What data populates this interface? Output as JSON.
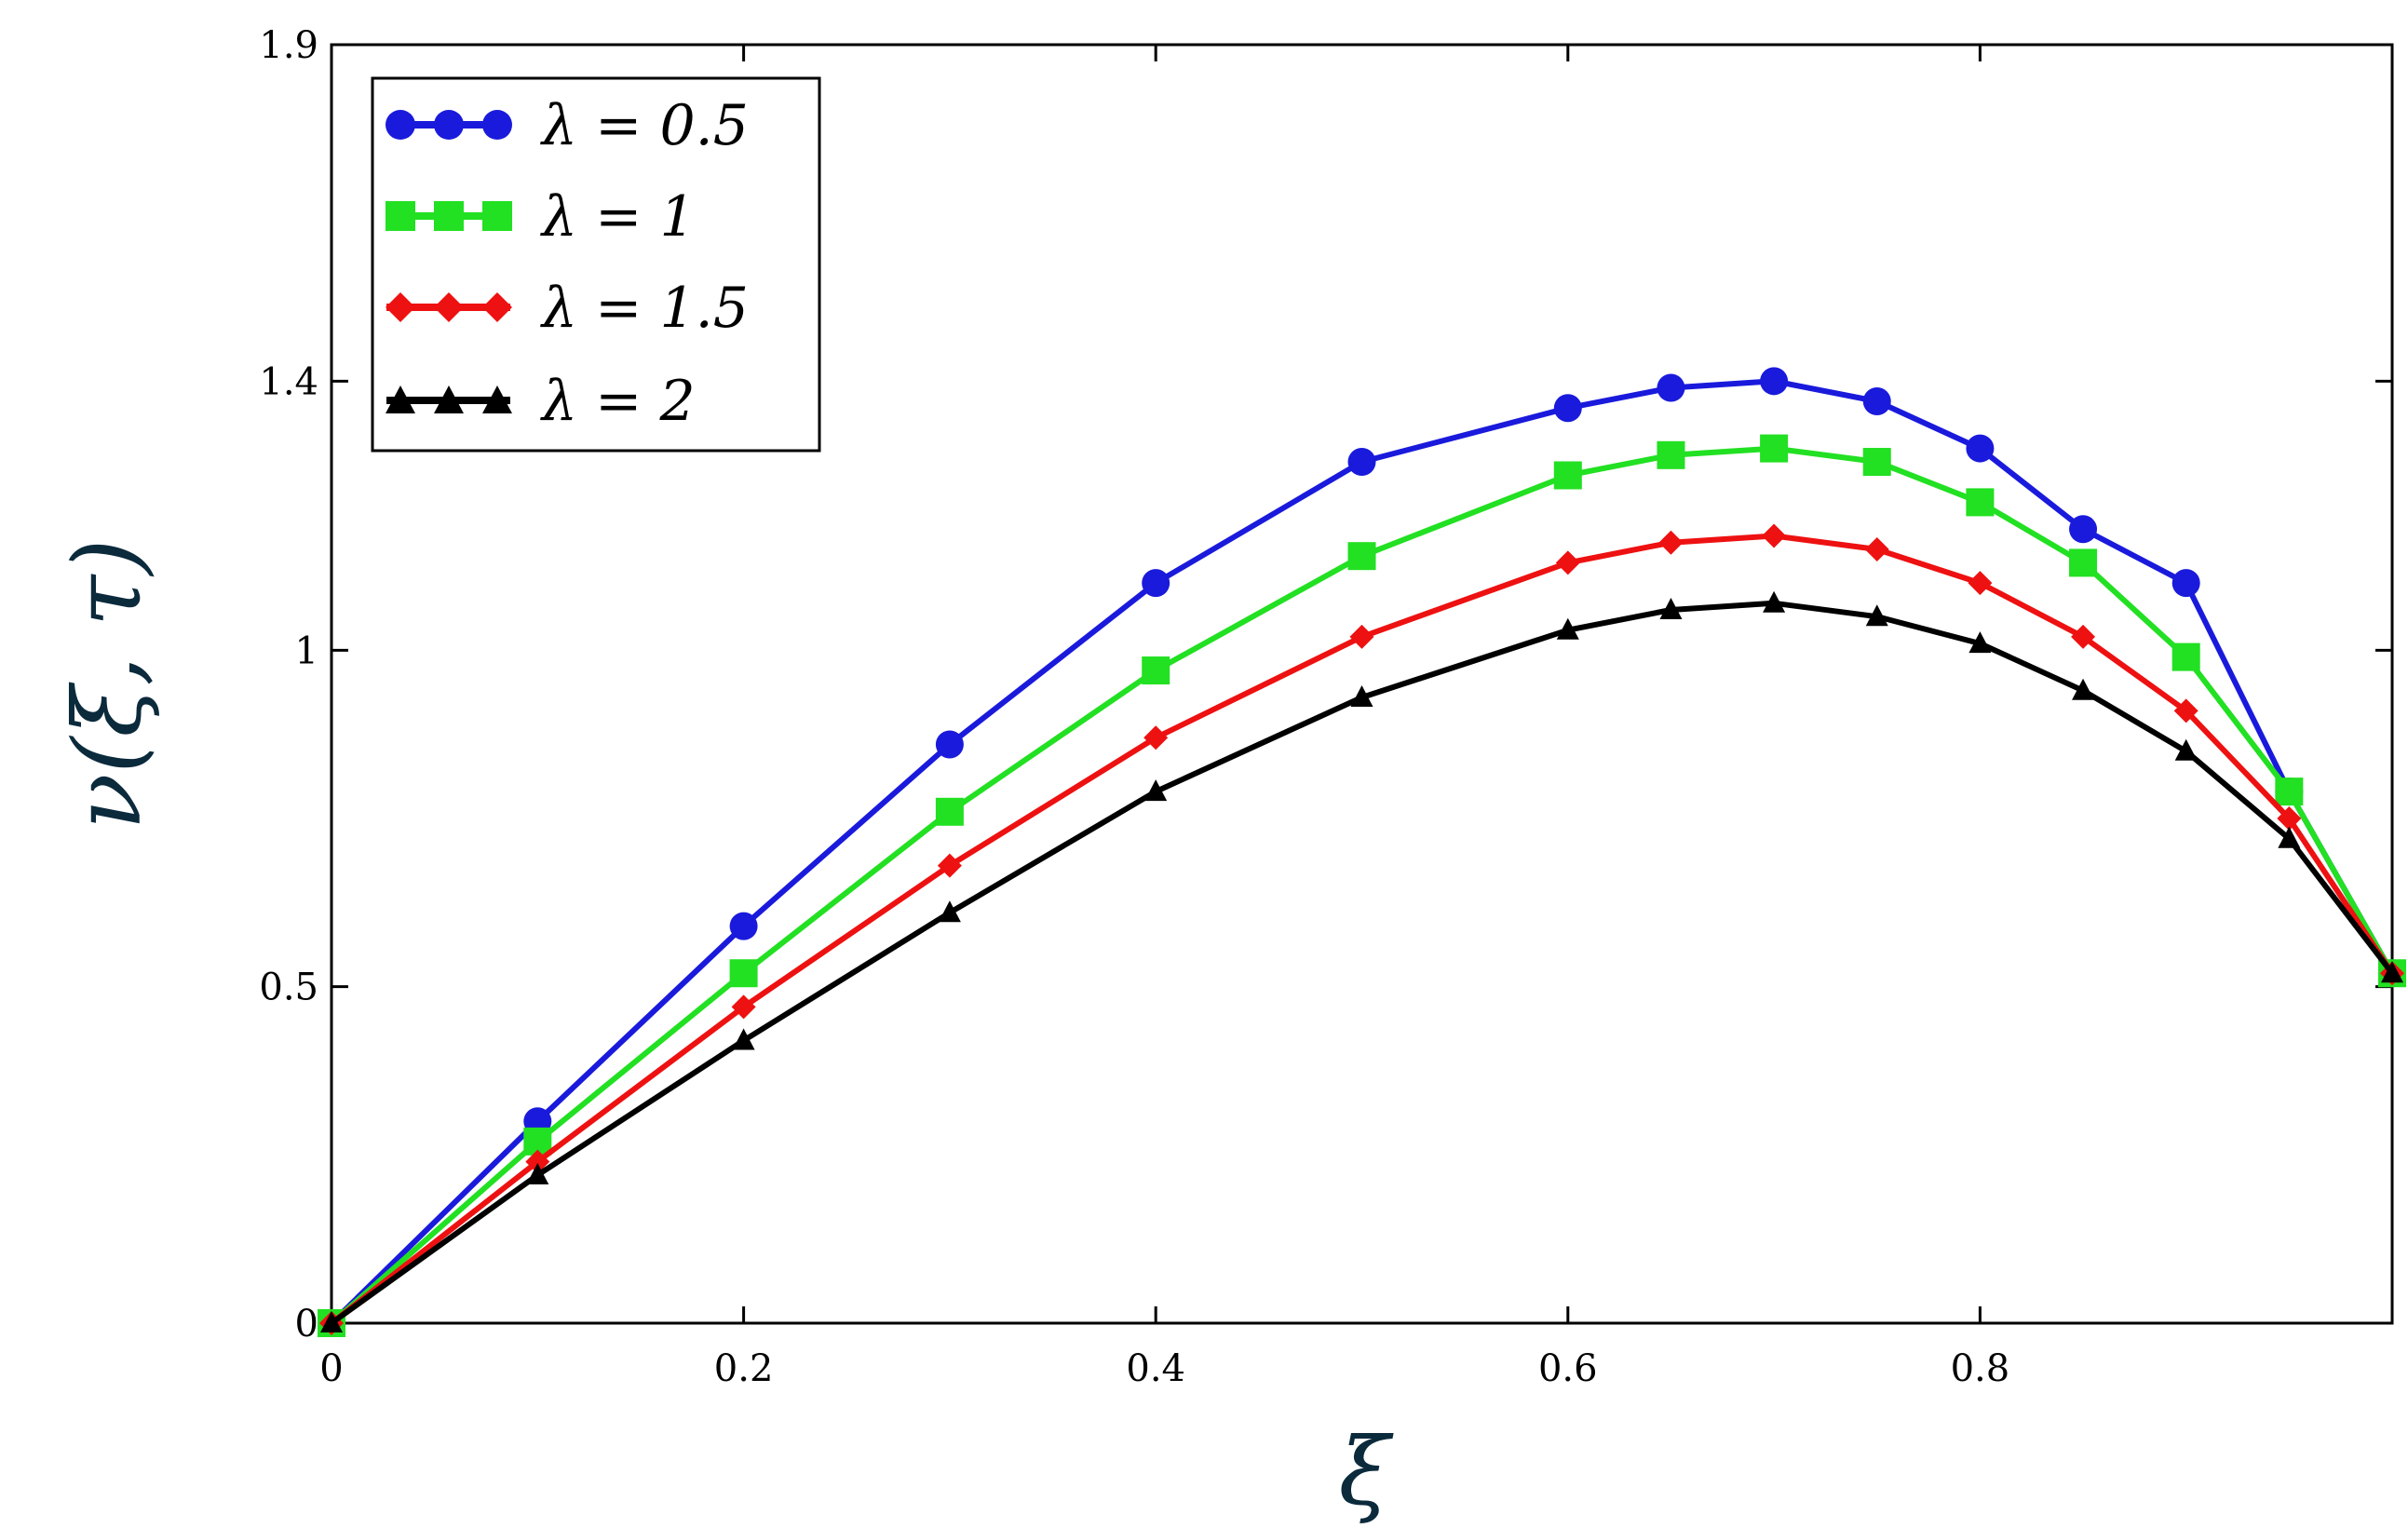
{
  "chart_data": {
    "type": "line",
    "title": "",
    "xlabel": "ξ",
    "ylabel": "ν(ξ, τ)",
    "xlim": [
      0,
      1
    ],
    "ylim": [
      0,
      1.9
    ],
    "xticks": [
      0,
      0.2,
      0.4,
      0.6,
      0.8
    ],
    "xtick_labels": [
      "0",
      "0.2",
      "0.4",
      "0.6",
      "0.8"
    ],
    "yticks": [
      0,
      0.5,
      1,
      1.4,
      1.9
    ],
    "ytick_labels": [
      "0",
      "0.5",
      "1",
      "1.4",
      "1.9"
    ],
    "grid": false,
    "legend_position": "top-left",
    "series": [
      {
        "name": "λ = 0.5",
        "color": "#1a1adc",
        "marker": "circle",
        "x": [
          0,
          0.1,
          0.2,
          0.3,
          0.4,
          0.5,
          0.6,
          0.65,
          0.7,
          0.75,
          0.8,
          0.85,
          0.9,
          0.95,
          1.0
        ],
        "y": [
          0,
          0.3,
          0.59,
          0.86,
          1.1,
          1.28,
          1.36,
          1.39,
          1.4,
          1.37,
          1.3,
          1.18,
          1.1,
          0.79,
          0.52
        ]
      },
      {
        "name": "λ = 1",
        "color": "#22e022",
        "marker": "square",
        "x": [
          0,
          0.1,
          0.2,
          0.3,
          0.4,
          0.5,
          0.6,
          0.65,
          0.7,
          0.75,
          0.8,
          0.85,
          0.9,
          0.95,
          1.0
        ],
        "y": [
          0,
          0.27,
          0.52,
          0.76,
          0.97,
          1.14,
          1.26,
          1.29,
          1.3,
          1.28,
          1.22,
          1.13,
          0.99,
          0.79,
          0.52
        ]
      },
      {
        "name": "λ = 1.5",
        "color": "#ee1111",
        "marker": "diamond",
        "x": [
          0,
          0.1,
          0.2,
          0.3,
          0.4,
          0.5,
          0.6,
          0.65,
          0.7,
          0.75,
          0.8,
          0.85,
          0.9,
          0.95,
          1.0
        ],
        "y": [
          0,
          0.24,
          0.47,
          0.68,
          0.87,
          1.02,
          1.13,
          1.16,
          1.17,
          1.15,
          1.1,
          1.02,
          0.91,
          0.75,
          0.52
        ]
      },
      {
        "name": "λ = 2",
        "color": "#000000",
        "marker": "triangle",
        "x": [
          0,
          0.1,
          0.2,
          0.3,
          0.4,
          0.5,
          0.6,
          0.65,
          0.7,
          0.75,
          0.8,
          0.85,
          0.9,
          0.95,
          1.0
        ],
        "y": [
          0,
          0.22,
          0.42,
          0.61,
          0.79,
          0.93,
          1.03,
          1.06,
          1.07,
          1.05,
          1.01,
          0.94,
          0.85,
          0.72,
          0.52
        ]
      }
    ]
  }
}
